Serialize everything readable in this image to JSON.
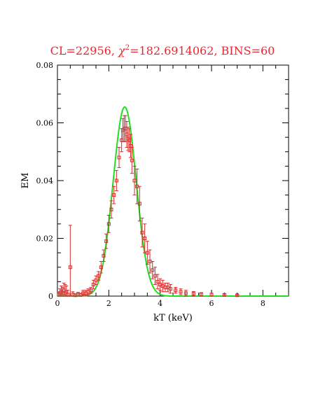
{
  "chart_data": {
    "type": "scatter",
    "title": {
      "prefix": "CL=22956, ",
      "chi": "χ",
      "sup": "2",
      "suffix": "=182.6914062, BINS=60"
    },
    "xlabel": "kT (keV)",
    "ylabel": "EM",
    "xlim": [
      0,
      9
    ],
    "ylim": [
      0,
      0.08
    ],
    "x_ticks": [
      0,
      2,
      4,
      6,
      8
    ],
    "y_ticks": [
      0,
      0.02,
      0.04,
      0.06,
      0.08
    ],
    "x_tick_labels": [
      "0",
      "2",
      "4",
      "6",
      "8"
    ],
    "y_tick_labels": [
      "0",
      "0.02",
      "0.04",
      "0.06",
      "0.08"
    ],
    "grid": false,
    "colors": {
      "data": "#d42a2a",
      "model": "#22dd22",
      "title": "#e8262e"
    },
    "series": [
      {
        "kind": "points",
        "points": [
          [
            0.05,
            0.0005,
            0.001
          ],
          [
            0.1,
            0.001,
            0.0015
          ],
          [
            0.15,
            0.0015,
            0.002
          ],
          [
            0.2,
            0.001,
            0.002
          ],
          [
            0.25,
            0.002,
            0.0025
          ],
          [
            0.3,
            0.001,
            0.003
          ],
          [
            0.35,
            0.0015,
            0.002
          ],
          [
            0.4,
            0.0005,
            0.0015
          ],
          [
            0.5,
            0.01,
            0.0145
          ],
          [
            0.6,
            0.0005,
            0.001
          ],
          [
            0.7,
            0.0003,
            0.0005
          ],
          [
            0.8,
            0.0005,
            0.0008
          ],
          [
            0.9,
            0.0004,
            0.0006
          ],
          [
            1.0,
            0.001,
            0.001
          ],
          [
            1.1,
            0.001,
            0.001
          ],
          [
            1.2,
            0.0015,
            0.001
          ],
          [
            1.3,
            0.002,
            0.001
          ],
          [
            1.4,
            0.004,
            0.0015
          ],
          [
            1.5,
            0.0055,
            0.0015
          ],
          [
            1.6,
            0.007,
            0.0015
          ],
          [
            1.7,
            0.01,
            0.002
          ],
          [
            1.8,
            0.014,
            0.002
          ],
          [
            1.9,
            0.019,
            0.0025
          ],
          [
            2.0,
            0.025,
            0.003
          ],
          [
            2.1,
            0.03,
            0.003
          ],
          [
            2.2,
            0.035,
            0.003
          ],
          [
            2.3,
            0.04,
            0.0035
          ],
          [
            2.4,
            0.048,
            0.0035
          ],
          [
            2.5,
            0.054,
            0.004
          ],
          [
            2.55,
            0.0575,
            0.004
          ],
          [
            2.6,
            0.058,
            0.0045
          ],
          [
            2.65,
            0.058,
            0.0045
          ],
          [
            2.7,
            0.056,
            0.0045
          ],
          [
            2.75,
            0.0545,
            0.004
          ],
          [
            2.8,
            0.054,
            0.004
          ],
          [
            2.85,
            0.052,
            0.004
          ],
          [
            2.9,
            0.047,
            0.0045
          ],
          [
            3.0,
            0.04,
            0.005
          ],
          [
            3.1,
            0.038,
            0.006
          ],
          [
            3.2,
            0.032,
            0.006
          ],
          [
            3.3,
            0.022,
            0.005
          ],
          [
            3.4,
            0.02,
            0.005
          ],
          [
            3.5,
            0.015,
            0.004
          ],
          [
            3.6,
            0.012,
            0.004
          ],
          [
            3.7,
            0.009,
            0.003
          ],
          [
            3.8,
            0.007,
            0.003
          ],
          [
            3.9,
            0.005,
            0.0025
          ],
          [
            4.0,
            0.004,
            0.002
          ],
          [
            4.1,
            0.0035,
            0.002
          ],
          [
            4.2,
            0.003,
            0.0015
          ],
          [
            4.3,
            0.003,
            0.0015
          ],
          [
            4.4,
            0.0025,
            0.0015
          ],
          [
            4.6,
            0.002,
            0.001
          ],
          [
            4.8,
            0.0015,
            0.001
          ],
          [
            5.0,
            0.001,
            0.001
          ],
          [
            5.3,
            0.0008,
            0.0008
          ],
          [
            5.6,
            0.0006,
            0.0006
          ],
          [
            6.0,
            0.0005,
            0.0005
          ],
          [
            6.5,
            0.0004,
            0.0004
          ],
          [
            7.0,
            0.0003,
            0.0003
          ]
        ]
      },
      {
        "kind": "line",
        "mu": 2.62,
        "sigma": 0.45,
        "amplitude": 0.0655
      }
    ]
  }
}
